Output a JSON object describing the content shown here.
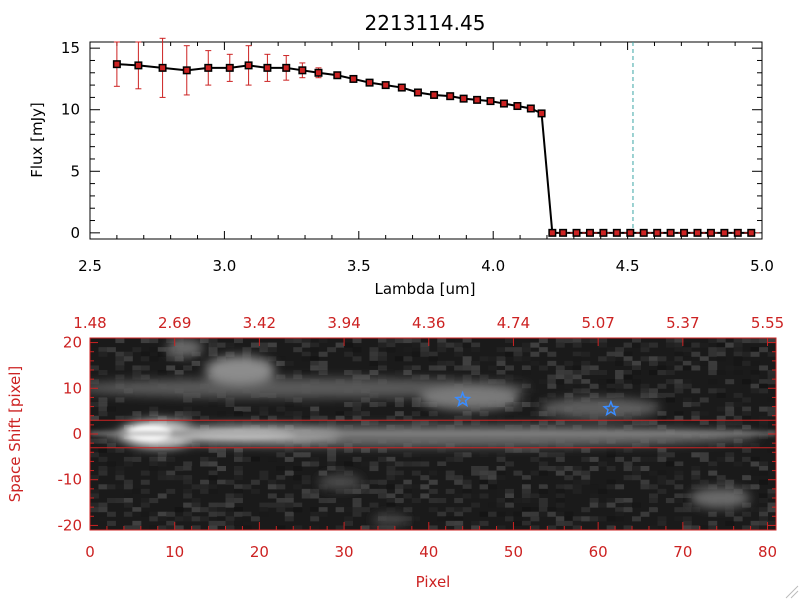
{
  "colors": {
    "axis_black": "#000000",
    "axis_red": "#cc2222",
    "marker_red": "#cc2222",
    "error_bar": "#cc2222",
    "line": "#000000",
    "dashed_line": "#3aa6a6",
    "star": "#3a8cff",
    "band_line": "#cc2222"
  },
  "chart_data": [
    {
      "type": "line",
      "title": "2213114.45",
      "xlabel": "Lambda [um]",
      "ylabel": "Flux [mJy]",
      "xlim": [
        2.5,
        5.0
      ],
      "ylim": [
        -0.5,
        15.5
      ],
      "x_ticks": [
        {
          "v": 2.5,
          "label": "2.5"
        },
        {
          "v": 3.0,
          "label": "3.0"
        },
        {
          "v": 3.5,
          "label": "3.5"
        },
        {
          "v": 4.0,
          "label": "4.0"
        },
        {
          "v": 4.5,
          "label": "4.5"
        },
        {
          "v": 5.0,
          "label": "5.0"
        }
      ],
      "y_ticks": [
        {
          "v": 0,
          "label": "0"
        },
        {
          "v": 5,
          "label": "5"
        },
        {
          "v": 10,
          "label": "10"
        },
        {
          "v": 15,
          "label": "15"
        }
      ],
      "vline_x": 4.52,
      "series": [
        {
          "x": [
            2.6,
            2.68,
            2.77,
            2.86,
            2.94,
            3.02,
            3.09,
            3.16,
            3.23,
            3.29,
            3.35,
            3.42,
            3.48,
            3.54,
            3.6,
            3.66,
            3.72,
            3.78,
            3.84,
            3.89,
            3.94,
            3.99,
            4.04,
            4.09,
            4.14,
            4.18,
            4.22,
            4.26,
            4.31,
            4.36,
            4.41,
            4.46,
            4.51,
            4.56,
            4.61,
            4.66,
            4.71,
            4.76,
            4.81,
            4.86,
            4.91,
            4.96
          ],
          "values": [
            13.7,
            13.6,
            13.4,
            13.2,
            13.4,
            13.4,
            13.6,
            13.4,
            13.4,
            13.2,
            13.0,
            12.8,
            12.5,
            12.2,
            12.0,
            11.8,
            11.4,
            11.2,
            11.1,
            10.9,
            10.8,
            10.7,
            10.5,
            10.3,
            10.1,
            9.7,
            0.0,
            0.0,
            0.0,
            0.0,
            0.0,
            0.0,
            0.0,
            0.0,
            0.0,
            0.0,
            0.0,
            0.0,
            0.0,
            0.0,
            0.0,
            0.0
          ],
          "errors": [
            1.8,
            1.9,
            2.4,
            2.0,
            1.4,
            1.1,
            1.6,
            1.1,
            1.0,
            0.6,
            0.4,
            0.2,
            0.2,
            0.2,
            0.2,
            0.2,
            0.2,
            0.2,
            0.2,
            0.2,
            0.2,
            0.2,
            0.2,
            0.2,
            0.2,
            0.2,
            0,
            0,
            0,
            0,
            0,
            0,
            0,
            0,
            0,
            0,
            0,
            0,
            0,
            0,
            0,
            0
          ]
        }
      ]
    },
    {
      "type": "heatmap",
      "xlabel": "Pixel",
      "ylabel": "Space Shift [pixel]",
      "xlim": [
        0,
        81
      ],
      "ylim": [
        -21,
        21
      ],
      "x_ticks": [
        {
          "v": 0,
          "label": "0"
        },
        {
          "v": 10,
          "label": "10"
        },
        {
          "v": 20,
          "label": "20"
        },
        {
          "v": 30,
          "label": "30"
        },
        {
          "v": 40,
          "label": "40"
        },
        {
          "v": 50,
          "label": "50"
        },
        {
          "v": 60,
          "label": "60"
        },
        {
          "v": 70,
          "label": "70"
        },
        {
          "v": 80,
          "label": "80"
        }
      ],
      "top_ticks": [
        {
          "v": 0,
          "label": "1.48"
        },
        {
          "v": 10,
          "label": "2.69"
        },
        {
          "v": 20,
          "label": "3.42"
        },
        {
          "v": 30,
          "label": "3.94"
        },
        {
          "v": 40,
          "label": "4.36"
        },
        {
          "v": 50,
          "label": "4.74"
        },
        {
          "v": 60,
          "label": "5.07"
        },
        {
          "v": 70,
          "label": "5.37"
        },
        {
          "v": 80,
          "label": "5.55"
        }
      ],
      "y_ticks": [
        {
          "v": 20,
          "label": "20"
        },
        {
          "v": 10,
          "label": "10"
        },
        {
          "v": 0,
          "label": "0"
        },
        {
          "v": -10,
          "label": "-10"
        },
        {
          "v": -20,
          "label": "-20"
        }
      ],
      "band_lines_y": [
        3,
        -3
      ],
      "stars": [
        {
          "x": 44,
          "y": 7.5
        },
        {
          "x": 61.5,
          "y": 5.5
        }
      ]
    }
  ]
}
